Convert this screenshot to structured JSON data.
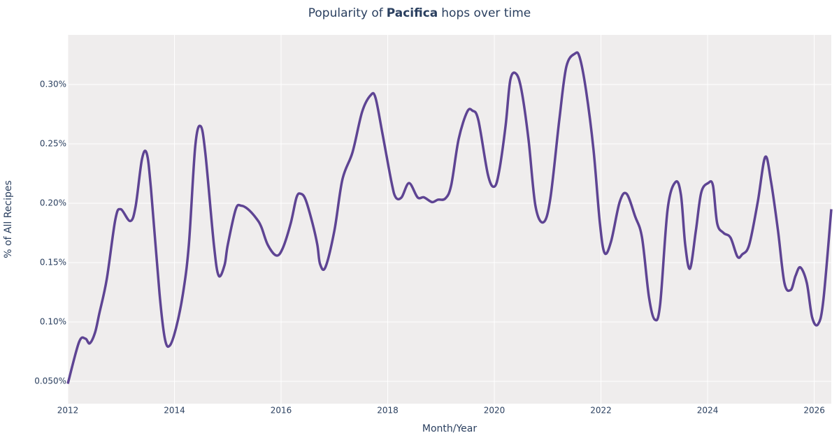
{
  "chart_data": {
    "type": "line",
    "title": {
      "before": "Popularity of",
      "bold": "Pacifica",
      "after": "hops over time"
    },
    "x_label": "Month/Year",
    "y_label": "% of All Recipes",
    "xlim": [
      2012,
      2026.32
    ],
    "xticks": [
      2012,
      2014,
      2016,
      2018,
      2020,
      2022,
      2024,
      2026
    ],
    "ylim": [
      0.0312,
      0.3418
    ],
    "yticks": [
      {
        "value": 0.05,
        "label": "0.050%"
      },
      {
        "value": 0.1,
        "label": "0.10%"
      },
      {
        "value": 0.15,
        "label": "0.15%"
      },
      {
        "value": 0.2,
        "label": "0.20%"
      },
      {
        "value": 0.25,
        "label": "0.25%"
      },
      {
        "value": 0.3,
        "label": "0.30%"
      }
    ],
    "grid": true,
    "series": [
      {
        "color": "#5e4493",
        "x": [
          2012.0,
          2012.21,
          2012.33,
          2012.41,
          2012.51,
          2012.59,
          2012.73,
          2012.89,
          2012.99,
          2013.17,
          2013.27,
          2013.39,
          2013.48,
          2013.56,
          2013.72,
          2013.82,
          2013.91,
          2014.03,
          2014.16,
          2014.27,
          2014.39,
          2014.49,
          2014.58,
          2014.74,
          2014.83,
          2014.94,
          2015.0,
          2015.15,
          2015.25,
          2015.38,
          2015.54,
          2015.63,
          2015.75,
          2015.91,
          2016.03,
          2016.18,
          2016.29,
          2016.37,
          2016.46,
          2016.59,
          2016.68,
          2016.73,
          2016.83,
          2017.0,
          2017.15,
          2017.34,
          2017.52,
          2017.68,
          2017.77,
          2017.9,
          2018.07,
          2018.15,
          2018.26,
          2018.4,
          2018.56,
          2018.68,
          2018.83,
          2018.94,
          2019.08,
          2019.19,
          2019.33,
          2019.49,
          2019.59,
          2019.7,
          2019.88,
          2020.0,
          2020.09,
          2020.21,
          2020.3,
          2020.41,
          2020.51,
          2020.64,
          2020.77,
          2020.92,
          2021.05,
          2021.22,
          2021.35,
          2021.51,
          2021.6,
          2021.72,
          2021.86,
          2021.98,
          2022.07,
          2022.19,
          2022.35,
          2022.48,
          2022.64,
          2022.77,
          2022.9,
          2023.01,
          2023.11,
          2023.25,
          2023.4,
          2023.5,
          2023.58,
          2023.67,
          2023.78,
          2023.88,
          2024.01,
          2024.1,
          2024.18,
          2024.3,
          2024.43,
          2024.56,
          2024.65,
          2024.78,
          2024.94,
          2025.08,
          2025.19,
          2025.32,
          2025.44,
          2025.56,
          2025.65,
          2025.74,
          2025.86,
          2025.96,
          2026.07,
          2026.17,
          2026.32
        ],
        "values": [
          0.048,
          0.083,
          0.086,
          0.082,
          0.091,
          0.107,
          0.136,
          0.186,
          0.195,
          0.185,
          0.197,
          0.237,
          0.242,
          0.212,
          0.124,
          0.086,
          0.08,
          0.095,
          0.124,
          0.165,
          0.248,
          0.265,
          0.242,
          0.165,
          0.139,
          0.148,
          0.165,
          0.195,
          0.198,
          0.195,
          0.187,
          0.18,
          0.165,
          0.156,
          0.162,
          0.183,
          0.205,
          0.208,
          0.203,
          0.183,
          0.165,
          0.149,
          0.146,
          0.177,
          0.22,
          0.243,
          0.277,
          0.291,
          0.289,
          0.259,
          0.218,
          0.205,
          0.205,
          0.217,
          0.205,
          0.205,
          0.201,
          0.203,
          0.204,
          0.215,
          0.254,
          0.277,
          0.278,
          0.27,
          0.224,
          0.214,
          0.227,
          0.265,
          0.304,
          0.309,
          0.295,
          0.254,
          0.198,
          0.184,
          0.204,
          0.271,
          0.315,
          0.326,
          0.323,
          0.295,
          0.245,
          0.183,
          0.158,
          0.168,
          0.201,
          0.208,
          0.189,
          0.171,
          0.121,
          0.102,
          0.115,
          0.195,
          0.218,
          0.207,
          0.165,
          0.145,
          0.177,
          0.209,
          0.217,
          0.215,
          0.183,
          0.175,
          0.171,
          0.155,
          0.157,
          0.165,
          0.201,
          0.239,
          0.218,
          0.177,
          0.133,
          0.127,
          0.139,
          0.146,
          0.133,
          0.104,
          0.098,
          0.118,
          0.195
        ]
      }
    ]
  }
}
